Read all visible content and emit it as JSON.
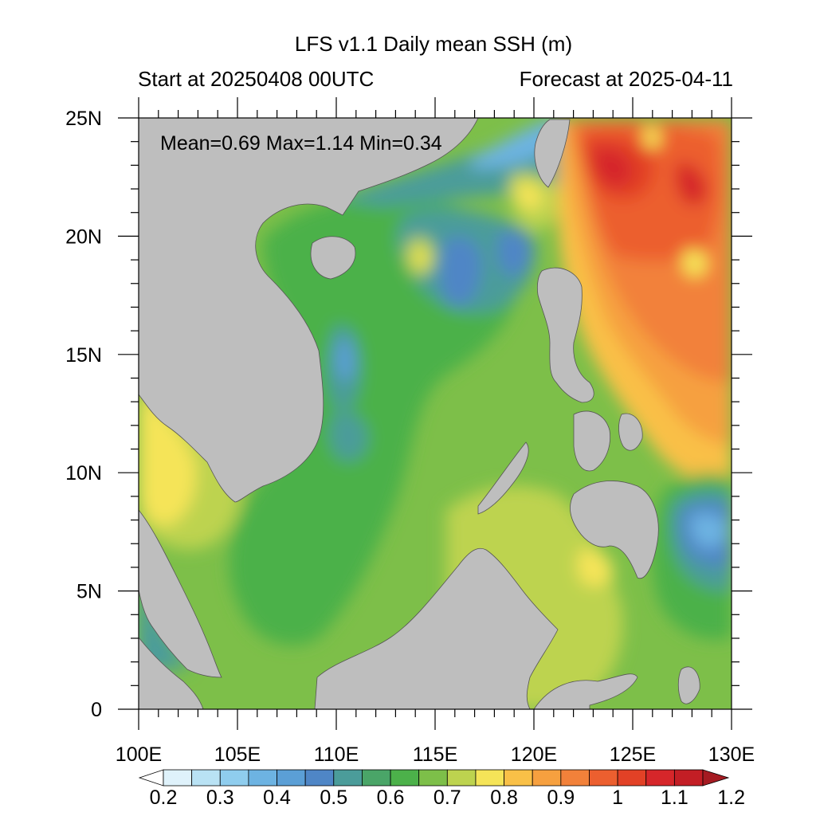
{
  "title": "LFS v1.1 Daily mean SSH (m)",
  "subtitle_left": "Start at 20250408 00UTC",
  "subtitle_right": "Forecast at 2025-04-11",
  "stats": {
    "text": "Mean=0.69  Max=1.14  Min=0.34",
    "mean": 0.69,
    "max": 1.14,
    "min": 0.34
  },
  "map": {
    "region": {
      "lon_range": [
        100,
        130
      ],
      "lat_range": [
        0,
        25
      ]
    },
    "lat_ticks": [
      {
        "value": 25,
        "label": "25N"
      },
      {
        "value": 20,
        "label": "20N"
      },
      {
        "value": 15,
        "label": "15N"
      },
      {
        "value": 10,
        "label": "10N"
      },
      {
        "value": 5,
        "label": "5N"
      },
      {
        "value": 0,
        "label": "0"
      }
    ],
    "lon_ticks": [
      {
        "value": 100,
        "label": "100E"
      },
      {
        "value": 105,
        "label": "105E"
      },
      {
        "value": 110,
        "label": "110E"
      },
      {
        "value": 115,
        "label": "115E"
      },
      {
        "value": 120,
        "label": "120E"
      },
      {
        "value": 125,
        "label": "125E"
      },
      {
        "value": 130,
        "label": "130E"
      }
    ],
    "land_color": "#bebebe"
  },
  "colorbar": {
    "levels": [
      0.2,
      0.25,
      0.3,
      0.35,
      0.4,
      0.45,
      0.5,
      0.55,
      0.6,
      0.65,
      0.7,
      0.75,
      0.8,
      0.85,
      0.9,
      0.95,
      1.0,
      1.05,
      1.1,
      1.15,
      1.2
    ],
    "labels": [
      "0.2",
      "0.3",
      "0.4",
      "0.5",
      "0.6",
      "0.7",
      "0.8",
      "0.9",
      "1",
      "1.1",
      "1.2"
    ],
    "colors": [
      "#ffffff",
      "#dff2fb",
      "#b9e2f4",
      "#8fcdee",
      "#6db3e2",
      "#5b9fd6",
      "#4f86c6",
      "#4b9c9a",
      "#4aa568",
      "#4cb14a",
      "#7dbf49",
      "#bdd34f",
      "#f5e458",
      "#f9c047",
      "#f6a03f",
      "#f2813a",
      "#ec5f2f",
      "#e24126",
      "#d6262a",
      "#c31e25",
      "#a51b22"
    ]
  }
}
